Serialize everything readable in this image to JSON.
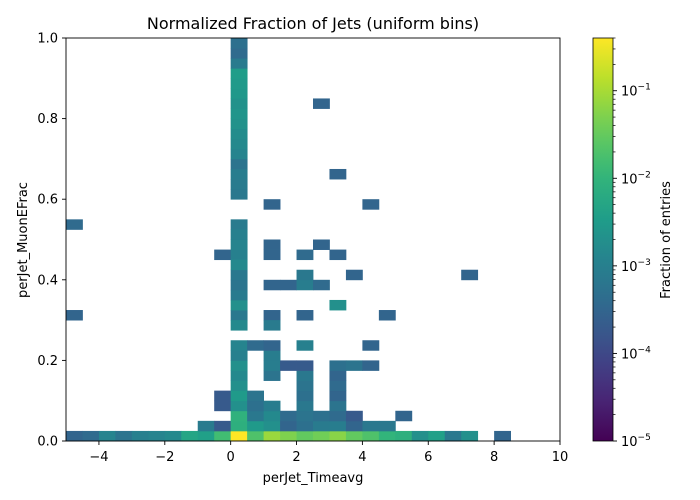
{
  "chart_data": {
    "type": "heatmap",
    "title": "Normalized Fraction of Jets (uniform bins)",
    "xlabel": "perJet_Timeavg",
    "ylabel": "perJet_MuonEFrac",
    "xlim": [
      -5,
      10
    ],
    "ylim": [
      0,
      1
    ],
    "x_bin_width": 0.5,
    "y_bin_width": 0.025,
    "xticks": [
      -4,
      -2,
      0,
      2,
      4,
      6,
      8,
      10
    ],
    "xtick_labels": [
      "−4",
      "−2",
      "0",
      "2",
      "4",
      "6",
      "8",
      "10"
    ],
    "yticks": [
      0.0,
      0.2,
      0.4,
      0.6,
      0.8,
      1.0
    ],
    "ytick_labels": [
      "0.0",
      "0.2",
      "0.4",
      "0.6",
      "0.8",
      "1.0"
    ],
    "grid": false,
    "colorbar": {
      "label": "Fraction of entries",
      "scale": "log",
      "colormap": "viridis",
      "range": [
        1e-05,
        0.4
      ],
      "ticks": [
        1e-05,
        0.0001,
        0.001,
        0.01,
        0.1
      ],
      "tick_labels": [
        {
          "base": "10",
          "exp": "−5"
        },
        {
          "base": "10",
          "exp": "−4"
        },
        {
          "base": "10",
          "exp": "−3"
        },
        {
          "base": "10",
          "exp": "−2"
        },
        {
          "base": "10",
          "exp": "−1"
        }
      ]
    },
    "cells": [
      [
        -5.0,
        0.0,
        0.0003
      ],
      [
        -4.5,
        0.0,
        0.0004
      ],
      [
        -4.0,
        0.0,
        0.0012
      ],
      [
        -3.5,
        0.0,
        0.0006
      ],
      [
        -3.0,
        0.0,
        0.001
      ],
      [
        -2.5,
        0.0,
        0.0012
      ],
      [
        -2.0,
        0.0,
        0.0015
      ],
      [
        -1.5,
        0.0,
        0.005
      ],
      [
        -1.0,
        0.0,
        0.004
      ],
      [
        -0.5,
        0.0,
        0.015
      ],
      [
        0.0,
        0.0,
        0.4
      ],
      [
        0.5,
        0.0,
        0.02
      ],
      [
        1.0,
        0.0,
        0.08
      ],
      [
        1.5,
        0.0,
        0.05
      ],
      [
        2.0,
        0.0,
        0.03
      ],
      [
        2.5,
        0.0,
        0.04
      ],
      [
        3.0,
        0.0,
        0.06
      ],
      [
        3.5,
        0.0,
        0.03
      ],
      [
        4.0,
        0.0,
        0.02
      ],
      [
        4.5,
        0.0,
        0.01
      ],
      [
        5.0,
        0.0,
        0.008
      ],
      [
        5.5,
        0.0,
        0.002
      ],
      [
        6.0,
        0.0,
        0.004
      ],
      [
        6.5,
        0.0,
        0.0007
      ],
      [
        7.0,
        0.0,
        0.002
      ],
      [
        8.0,
        0.0,
        0.0003
      ],
      [
        -1.0,
        0.025,
        0.0008
      ],
      [
        -0.5,
        0.025,
        0.0002
      ],
      [
        0.0,
        0.025,
        0.008
      ],
      [
        0.5,
        0.025,
        0.003
      ],
      [
        1.0,
        0.025,
        0.002
      ],
      [
        1.5,
        0.025,
        0.0003
      ],
      [
        2.0,
        0.025,
        0.0005
      ],
      [
        2.5,
        0.025,
        0.0008
      ],
      [
        3.0,
        0.025,
        0.0009
      ],
      [
        3.5,
        0.025,
        0.0003
      ],
      [
        4.0,
        0.025,
        0.0007
      ],
      [
        4.5,
        0.025,
        0.0007
      ],
      [
        0.0,
        0.05,
        0.009
      ],
      [
        0.5,
        0.05,
        0.0007
      ],
      [
        1.0,
        0.05,
        0.0015
      ],
      [
        1.5,
        0.05,
        0.0004
      ],
      [
        2.0,
        0.05,
        0.0006
      ],
      [
        2.5,
        0.05,
        0.0005
      ],
      [
        3.0,
        0.05,
        0.0004
      ],
      [
        3.5,
        0.05,
        0.0002
      ],
      [
        5.0,
        0.05,
        0.0003
      ],
      [
        -0.5,
        0.075,
        0.0002
      ],
      [
        0.0,
        0.075,
        0.002
      ],
      [
        0.5,
        0.075,
        0.0005
      ],
      [
        1.0,
        0.075,
        0.0009
      ],
      [
        2.0,
        0.075,
        0.0007
      ],
      [
        3.0,
        0.075,
        0.0006
      ],
      [
        -0.5,
        0.1,
        0.0002
      ],
      [
        0.0,
        0.1,
        0.003
      ],
      [
        0.5,
        0.1,
        0.0006
      ],
      [
        2.0,
        0.1,
        0.0005
      ],
      [
        3.0,
        0.1,
        0.0003
      ],
      [
        0.0,
        0.125,
        0.002
      ],
      [
        2.0,
        0.125,
        0.0006
      ],
      [
        3.0,
        0.125,
        0.0004
      ],
      [
        0.0,
        0.15,
        0.0015
      ],
      [
        1.0,
        0.15,
        0.0006
      ],
      [
        2.0,
        0.15,
        0.0007
      ],
      [
        3.0,
        0.15,
        0.0003
      ],
      [
        0.0,
        0.175,
        0.002
      ],
      [
        1.0,
        0.175,
        0.0009
      ],
      [
        1.5,
        0.175,
        0.0002
      ],
      [
        2.0,
        0.175,
        0.0002
      ],
      [
        3.0,
        0.175,
        0.0005
      ],
      [
        3.5,
        0.175,
        0.0006
      ],
      [
        4.0,
        0.175,
        0.0003
      ],
      [
        0.0,
        0.2,
        0.001
      ],
      [
        1.0,
        0.2,
        0.0009
      ],
      [
        0.0,
        0.225,
        0.0012
      ],
      [
        0.5,
        0.225,
        0.0004
      ],
      [
        1.0,
        0.225,
        0.0003
      ],
      [
        2.0,
        0.225,
        0.001
      ],
      [
        4.0,
        0.225,
        0.0003
      ],
      [
        -5.0,
        0.3,
        0.0003
      ],
      [
        0.0,
        0.3,
        0.0007
      ],
      [
        1.0,
        0.3,
        0.0003
      ],
      [
        2.0,
        0.3,
        0.0003
      ],
      [
        4.5,
        0.3,
        0.0003
      ],
      [
        0.0,
        0.275,
        0.0015
      ],
      [
        1.0,
        0.275,
        0.0008
      ],
      [
        0.0,
        0.325,
        0.002
      ],
      [
        3.0,
        0.325,
        0.002
      ],
      [
        0.0,
        0.35,
        0.0008
      ],
      [
        0.0,
        0.375,
        0.0006
      ],
      [
        1.0,
        0.375,
        0.0003
      ],
      [
        1.5,
        0.375,
        0.0003
      ],
      [
        2.0,
        0.375,
        0.0009
      ],
      [
        2.5,
        0.375,
        0.0004
      ],
      [
        0.0,
        0.4,
        0.0007
      ],
      [
        2.0,
        0.4,
        0.0007
      ],
      [
        3.5,
        0.4,
        0.0003
      ],
      [
        7.0,
        0.4,
        0.0003
      ],
      [
        -0.5,
        0.45,
        0.0003
      ],
      [
        0.0,
        0.45,
        0.001
      ],
      [
        1.0,
        0.45,
        0.0003
      ],
      [
        2.0,
        0.45,
        0.0004
      ],
      [
        3.0,
        0.45,
        0.0003
      ],
      [
        0.0,
        0.425,
        0.0015
      ],
      [
        1.0,
        0.475,
        0.0003
      ],
      [
        2.5,
        0.475,
        0.0003
      ],
      [
        0.0,
        0.475,
        0.0012
      ],
      [
        -5.0,
        0.525,
        0.0004
      ],
      [
        0.0,
        0.525,
        0.0008
      ],
      [
        0.0,
        0.5,
        0.001
      ],
      [
        1.0,
        0.575,
        0.0003
      ],
      [
        4.0,
        0.575,
        0.0003
      ],
      [
        0.0,
        0.6,
        0.0007
      ],
      [
        0.0,
        0.625,
        0.0008
      ],
      [
        0.0,
        0.65,
        0.0009
      ],
      [
        3.0,
        0.65,
        0.0003
      ],
      [
        0.0,
        0.675,
        0.0006
      ],
      [
        0.0,
        0.7,
        0.0012
      ],
      [
        0.0,
        0.725,
        0.0015
      ],
      [
        0.0,
        0.75,
        0.0017
      ],
      [
        0.0,
        0.775,
        0.0022
      ],
      [
        0.0,
        0.8,
        0.0025
      ],
      [
        0.0,
        0.825,
        0.0022
      ],
      [
        2.5,
        0.825,
        0.0003
      ],
      [
        0.0,
        0.85,
        0.0028
      ],
      [
        0.0,
        0.875,
        0.003
      ],
      [
        0.0,
        0.9,
        0.0035
      ],
      [
        0.0,
        0.925,
        0.0008
      ],
      [
        0.0,
        0.95,
        0.0004
      ],
      [
        0.0,
        0.975,
        0.0005
      ]
    ]
  }
}
